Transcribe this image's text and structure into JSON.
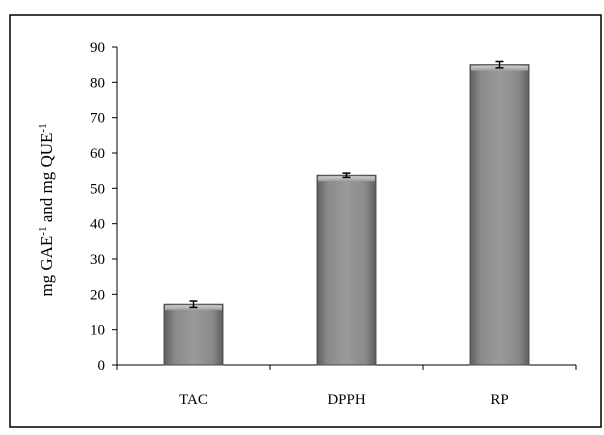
{
  "chart_data": {
    "type": "bar",
    "categories": [
      "TAC",
      "DPPH",
      "RP"
    ],
    "values": [
      17.2,
      53.7,
      85.0
    ],
    "errors": [
      0.9,
      0.6,
      0.9
    ],
    "ylim": [
      0,
      90
    ],
    "yticks": [
      0,
      10,
      20,
      30,
      40,
      50,
      60,
      70,
      80,
      90
    ],
    "ylabel": {
      "parts": [
        "mg GAE",
        "-1",
        " and mg QUE",
        "-1"
      ]
    },
    "xlabel": "",
    "title": "",
    "grid": false,
    "legend": "none",
    "bar_color": "#808080"
  }
}
